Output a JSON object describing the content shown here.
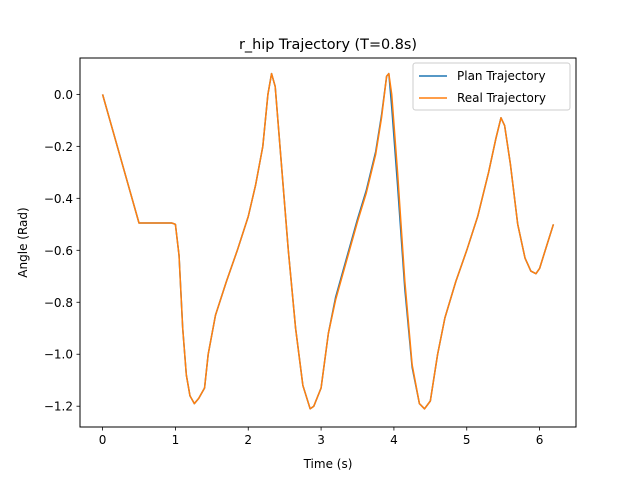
{
  "chart_data": {
    "type": "line",
    "title": "r_hip Trajectory (T=0.8s)",
    "xlabel": "Time (s)",
    "ylabel": "Angle (Rad)",
    "xlim": [
      -0.31,
      6.5
    ],
    "ylim": [
      -1.28,
      0.14
    ],
    "xticks": [
      0,
      1,
      2,
      3,
      4,
      5,
      6
    ],
    "xtick_labels": [
      "0",
      "1",
      "2",
      "3",
      "4",
      "5",
      "6"
    ],
    "yticks": [
      0.0,
      -0.2,
      -0.4,
      -0.6,
      -0.8,
      -1.0,
      -1.2
    ],
    "ytick_labels": [
      "0.0",
      "−0.2",
      "−0.4",
      "−0.6",
      "−0.8",
      "−1.0",
      "−1.2"
    ],
    "grid": false,
    "legend": "top-right",
    "series": [
      {
        "name": "Plan Trajectory",
        "color": "#1f77b4",
        "points": [
          [
            0,
            0
          ],
          [
            0.5,
            -0.495
          ],
          [
            0.95,
            -0.495
          ],
          [
            1.0,
            -0.5
          ],
          [
            1.05,
            -0.62
          ],
          [
            1.1,
            -0.9
          ],
          [
            1.15,
            -1.08
          ],
          [
            1.2,
            -1.16
          ],
          [
            1.26,
            -1.19
          ],
          [
            1.32,
            -1.17
          ],
          [
            1.4,
            -1.13
          ],
          [
            1.45,
            -1.0
          ],
          [
            1.55,
            -0.85
          ],
          [
            1.7,
            -0.72
          ],
          [
            1.85,
            -0.6
          ],
          [
            2.0,
            -0.47
          ],
          [
            2.1,
            -0.35
          ],
          [
            2.2,
            -0.2
          ],
          [
            2.27,
            0.0
          ],
          [
            2.32,
            0.08
          ],
          [
            2.37,
            0.03
          ],
          [
            2.45,
            -0.25
          ],
          [
            2.55,
            -0.6
          ],
          [
            2.65,
            -0.9
          ],
          [
            2.75,
            -1.12
          ],
          [
            2.85,
            -1.21
          ],
          [
            2.9,
            -1.2
          ],
          [
            3.0,
            -1.13
          ],
          [
            3.1,
            -0.92
          ],
          [
            3.2,
            -0.78
          ],
          [
            3.35,
            -0.63
          ],
          [
            3.5,
            -0.48
          ],
          [
            3.62,
            -0.37
          ],
          [
            3.75,
            -0.22
          ],
          [
            3.83,
            -0.08
          ],
          [
            3.9,
            0.07
          ],
          [
            3.93,
            0.08
          ],
          [
            3.97,
            -0.05
          ],
          [
            4.05,
            -0.35
          ],
          [
            4.15,
            -0.75
          ],
          [
            4.25,
            -1.05
          ],
          [
            4.35,
            -1.19
          ],
          [
            4.42,
            -1.21
          ],
          [
            4.5,
            -1.18
          ],
          [
            4.6,
            -1.0
          ],
          [
            4.7,
            -0.86
          ],
          [
            4.85,
            -0.72
          ],
          [
            5.0,
            -0.6
          ],
          [
            5.15,
            -0.47
          ],
          [
            5.3,
            -0.3
          ],
          [
            5.4,
            -0.17
          ],
          [
            5.47,
            -0.09
          ],
          [
            5.52,
            -0.12
          ],
          [
            5.6,
            -0.27
          ],
          [
            5.7,
            -0.5
          ],
          [
            5.8,
            -0.63
          ],
          [
            5.88,
            -0.68
          ],
          [
            5.95,
            -0.69
          ],
          [
            6.0,
            -0.67
          ],
          [
            6.1,
            -0.58
          ],
          [
            6.19,
            -0.5
          ]
        ]
      },
      {
        "name": "Real Trajectory",
        "color": "#ff7f0e",
        "points": [
          [
            0,
            0
          ],
          [
            0.5,
            -0.495
          ],
          [
            0.95,
            -0.495
          ],
          [
            1.0,
            -0.5
          ],
          [
            1.05,
            -0.62
          ],
          [
            1.1,
            -0.9
          ],
          [
            1.15,
            -1.08
          ],
          [
            1.2,
            -1.16
          ],
          [
            1.26,
            -1.19
          ],
          [
            1.32,
            -1.17
          ],
          [
            1.4,
            -1.13
          ],
          [
            1.45,
            -1.0
          ],
          [
            1.55,
            -0.85
          ],
          [
            1.7,
            -0.72
          ],
          [
            1.85,
            -0.6
          ],
          [
            2.0,
            -0.47
          ],
          [
            2.1,
            -0.35
          ],
          [
            2.2,
            -0.2
          ],
          [
            2.27,
            0.0
          ],
          [
            2.32,
            0.08
          ],
          [
            2.37,
            0.03
          ],
          [
            2.45,
            -0.25
          ],
          [
            2.55,
            -0.6
          ],
          [
            2.65,
            -0.9
          ],
          [
            2.75,
            -1.12
          ],
          [
            2.85,
            -1.21
          ],
          [
            2.9,
            -1.2
          ],
          [
            3.0,
            -1.13
          ],
          [
            3.1,
            -0.92
          ],
          [
            3.2,
            -0.79
          ],
          [
            3.35,
            -0.64
          ],
          [
            3.5,
            -0.49
          ],
          [
            3.62,
            -0.38
          ],
          [
            3.75,
            -0.23
          ],
          [
            3.83,
            -0.09
          ],
          [
            3.9,
            0.07
          ],
          [
            3.93,
            0.08
          ],
          [
            3.97,
            0.0
          ],
          [
            4.05,
            -0.3
          ],
          [
            4.15,
            -0.72
          ],
          [
            4.25,
            -1.04
          ],
          [
            4.35,
            -1.19
          ],
          [
            4.42,
            -1.21
          ],
          [
            4.5,
            -1.18
          ],
          [
            4.6,
            -1.0
          ],
          [
            4.7,
            -0.86
          ],
          [
            4.85,
            -0.72
          ],
          [
            5.0,
            -0.6
          ],
          [
            5.15,
            -0.47
          ],
          [
            5.3,
            -0.3
          ],
          [
            5.4,
            -0.17
          ],
          [
            5.47,
            -0.09
          ],
          [
            5.52,
            -0.12
          ],
          [
            5.6,
            -0.27
          ],
          [
            5.7,
            -0.5
          ],
          [
            5.8,
            -0.63
          ],
          [
            5.88,
            -0.68
          ],
          [
            5.95,
            -0.69
          ],
          [
            6.0,
            -0.67
          ],
          [
            6.1,
            -0.58
          ],
          [
            6.19,
            -0.5
          ]
        ]
      }
    ]
  }
}
